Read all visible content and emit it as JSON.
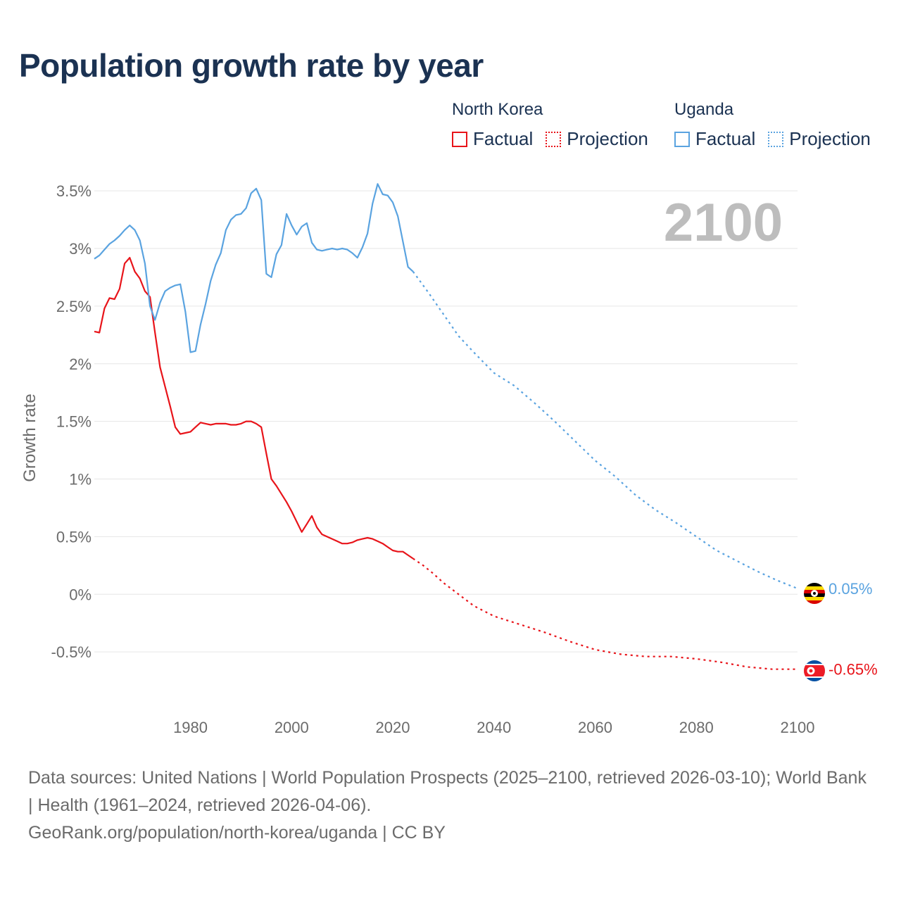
{
  "title": "Population growth rate by year",
  "legend": {
    "groups": [
      {
        "name": "North Korea",
        "color": "#e8141a",
        "factual": "Factual",
        "projection": "Projection"
      },
      {
        "name": "Uganda",
        "color": "#5aa3e0",
        "factual": "Factual",
        "projection": "Projection"
      }
    ]
  },
  "year_overlay": "2100",
  "footer": {
    "sources": "Data sources: United Nations | World Population Prospects (2025–2100, retrieved 2026-03-10); World Bank | Health (1961–2024, retrieved 2026-04-06).",
    "credit": "GeoRank.org/population/north-korea/uganda | CC BY"
  },
  "chart_data": {
    "type": "line",
    "title": "Population growth rate by year",
    "xlabel": "",
    "ylabel": "Growth rate",
    "xlim": [
      1961,
      2100
    ],
    "ylim": [
      -1.0,
      3.8
    ],
    "yticks": [
      -0.5,
      0,
      0.5,
      1,
      1.5,
      2,
      2.5,
      3,
      3.5
    ],
    "ytick_labels": [
      "-0.5%",
      "0%",
      "0.5%",
      "1%",
      "1.5%",
      "2%",
      "2.5%",
      "3%",
      "3.5%"
    ],
    "xticks": [
      1980,
      2000,
      2020,
      2040,
      2060,
      2080,
      2100
    ],
    "xtick_labels": [
      "1980",
      "2000",
      "2020",
      "2040",
      "2060",
      "2080",
      "2100"
    ],
    "grid": true,
    "legend_position": "top-right",
    "projection_start": 2024,
    "series": [
      {
        "name": "North Korea",
        "color": "#e8141a",
        "end_label": "-0.65%",
        "x": [
          1961,
          1962,
          1963,
          1964,
          1965,
          1966,
          1967,
          1968,
          1969,
          1970,
          1971,
          1972,
          1973,
          1974,
          1975,
          1976,
          1977,
          1978,
          1979,
          1980,
          1981,
          1982,
          1983,
          1984,
          1985,
          1986,
          1987,
          1988,
          1989,
          1990,
          1991,
          1992,
          1993,
          1994,
          1995,
          1996,
          1997,
          1998,
          1999,
          2000,
          2001,
          2002,
          2003,
          2004,
          2005,
          2006,
          2007,
          2008,
          2009,
          2010,
          2011,
          2012,
          2013,
          2014,
          2015,
          2016,
          2017,
          2018,
          2019,
          2020,
          2021,
          2022,
          2023,
          2024,
          2026,
          2028,
          2030,
          2033,
          2036,
          2040,
          2045,
          2050,
          2055,
          2060,
          2065,
          2070,
          2075,
          2080,
          2085,
          2090,
          2095,
          2100
        ],
        "y": [
          2.28,
          2.27,
          2.48,
          2.57,
          2.56,
          2.65,
          2.87,
          2.92,
          2.8,
          2.74,
          2.63,
          2.58,
          2.27,
          1.97,
          1.8,
          1.63,
          1.45,
          1.39,
          1.4,
          1.41,
          1.45,
          1.49,
          1.48,
          1.47,
          1.48,
          1.48,
          1.48,
          1.47,
          1.47,
          1.48,
          1.5,
          1.5,
          1.48,
          1.45,
          1.22,
          1.0,
          0.94,
          0.87,
          0.8,
          0.72,
          0.63,
          0.54,
          0.61,
          0.68,
          0.58,
          0.52,
          0.5,
          0.48,
          0.46,
          0.44,
          0.44,
          0.45,
          0.47,
          0.48,
          0.49,
          0.48,
          0.46,
          0.44,
          0.41,
          0.38,
          0.37,
          0.37,
          0.34,
          0.31,
          0.25,
          0.18,
          0.1,
          0.0,
          -0.1,
          -0.19,
          -0.26,
          -0.33,
          -0.41,
          -0.48,
          -0.52,
          -0.54,
          -0.54,
          -0.56,
          -0.59,
          -0.63,
          -0.65,
          -0.65
        ]
      },
      {
        "name": "Uganda",
        "color": "#5aa3e0",
        "end_label": "0.05%",
        "x": [
          1961,
          1962,
          1963,
          1964,
          1965,
          1966,
          1967,
          1968,
          1969,
          1970,
          1971,
          1972,
          1973,
          1974,
          1975,
          1976,
          1977,
          1978,
          1979,
          1980,
          1981,
          1982,
          1983,
          1984,
          1985,
          1986,
          1987,
          1988,
          1989,
          1990,
          1991,
          1992,
          1993,
          1994,
          1995,
          1996,
          1997,
          1998,
          1999,
          2000,
          2001,
          2002,
          2003,
          2004,
          2005,
          2006,
          2007,
          2008,
          2009,
          2010,
          2011,
          2012,
          2013,
          2014,
          2015,
          2016,
          2017,
          2018,
          2019,
          2020,
          2021,
          2022,
          2023,
          2024,
          2027,
          2030,
          2033,
          2036,
          2040,
          2044,
          2048,
          2052,
          2056,
          2060,
          2064,
          2068,
          2072,
          2076,
          2080,
          2084,
          2088,
          2092,
          2096,
          2100
        ],
        "y": [
          2.91,
          2.94,
          2.99,
          3.04,
          3.07,
          3.11,
          3.16,
          3.2,
          3.16,
          3.07,
          2.87,
          2.5,
          2.38,
          2.53,
          2.63,
          2.66,
          2.68,
          2.69,
          2.45,
          2.1,
          2.11,
          2.34,
          2.52,
          2.72,
          2.86,
          2.96,
          3.16,
          3.25,
          3.29,
          3.3,
          3.35,
          3.48,
          3.52,
          3.42,
          2.78,
          2.75,
          2.95,
          3.03,
          3.3,
          3.2,
          3.12,
          3.19,
          3.22,
          3.05,
          2.99,
          2.98,
          2.99,
          3.0,
          2.99,
          3.0,
          2.99,
          2.96,
          2.92,
          3.01,
          3.13,
          3.39,
          3.56,
          3.47,
          3.46,
          3.4,
          3.28,
          3.06,
          2.84,
          2.8,
          2.62,
          2.43,
          2.24,
          2.1,
          1.92,
          1.81,
          1.66,
          1.5,
          1.33,
          1.16,
          1.02,
          0.86,
          0.73,
          0.62,
          0.5,
          0.38,
          0.29,
          0.2,
          0.12,
          0.05
        ]
      }
    ]
  }
}
